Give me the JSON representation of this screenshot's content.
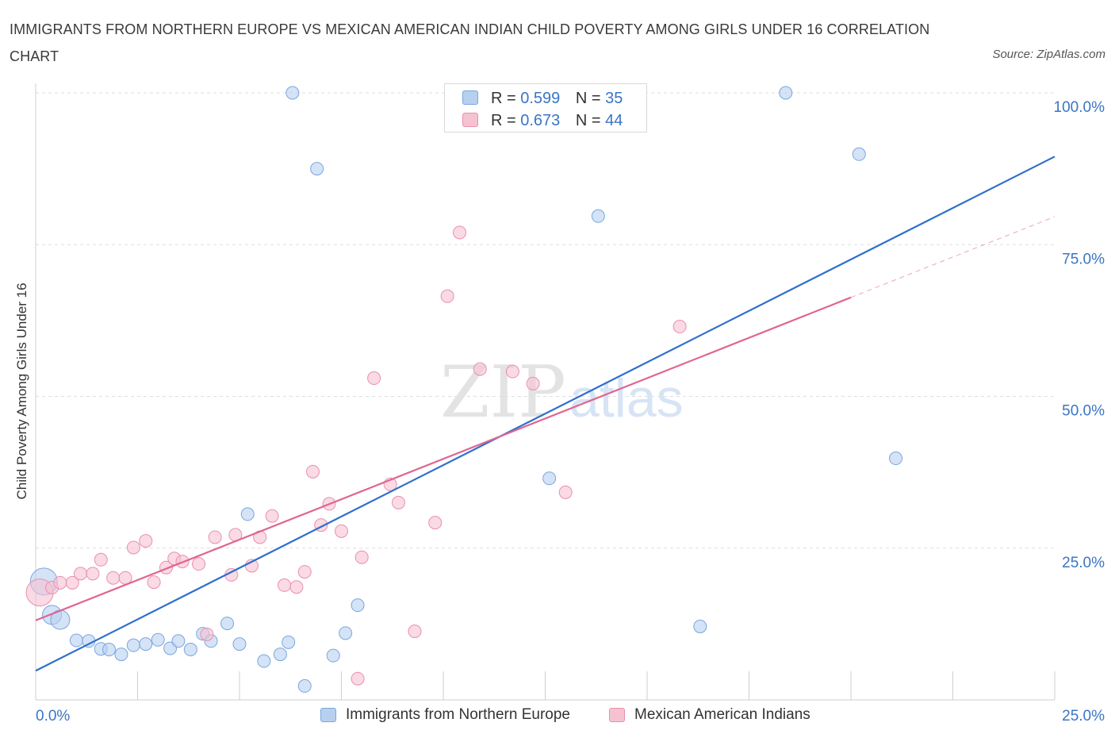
{
  "header": {
    "title": "IMMIGRANTS FROM NORTHERN EUROPE VS MEXICAN AMERICAN INDIAN CHILD POVERTY AMONG GIRLS UNDER 16 CORRELATION CHART",
    "source": "Source: ZipAtlas.com"
  },
  "watermark": {
    "zip": "ZIP",
    "atlas": "atlas"
  },
  "legend": {
    "rows": [
      {
        "r_label": "R =",
        "r_value": "0.599",
        "n_label": "N =",
        "n_value": "35"
      },
      {
        "r_label": "R =",
        "r_value": "0.673",
        "n_label": "N =",
        "n_value": "44"
      }
    ]
  },
  "colors": {
    "blue_fill": "#b8d0f0",
    "blue_stroke": "#7aa6de",
    "blue_line": "#2f6fcc",
    "pink_fill": "#f6c2d2",
    "pink_stroke": "#e98fae",
    "pink_line": "#e06590",
    "tick_text": "#3a75c4",
    "grid": "#dddddd"
  },
  "chart_data": {
    "type": "scatter",
    "title": "IMMIGRANTS FROM NORTHERN EUROPE VS MEXICAN AMERICAN INDIAN CHILD POVERTY AMONG GIRLS UNDER 16 CORRELATION CHART",
    "xlabel": "",
    "ylabel": "Child Poverty Among Girls Under 16",
    "xlim": [
      0,
      25
    ],
    "ylim": [
      0,
      100
    ],
    "x_tick_labels": [
      "0.0%",
      "25.0%"
    ],
    "y_tick_labels": [
      "25.0%",
      "50.0%",
      "75.0%",
      "100.0%"
    ],
    "y_ticks": [
      25,
      50,
      75,
      100
    ],
    "grid": true,
    "legend_position": "top-center",
    "series": [
      {
        "name": "Immigrants from Northern Europe",
        "r": 0.599,
        "n": 35,
        "color": "#7aa6de",
        "trend": {
          "x": [
            0,
            25
          ],
          "y": [
            4.8,
            89.5
          ]
        },
        "points": [
          {
            "x": 0.2,
            "y": 19.5,
            "size": "large"
          },
          {
            "x": 0.4,
            "y": 14.0,
            "size": "medium"
          },
          {
            "x": 0.6,
            "y": 13.2,
            "size": "medium"
          },
          {
            "x": 1.0,
            "y": 9.8
          },
          {
            "x": 1.3,
            "y": 9.7
          },
          {
            "x": 1.6,
            "y": 8.4
          },
          {
            "x": 1.8,
            "y": 8.3
          },
          {
            "x": 2.1,
            "y": 7.5
          },
          {
            "x": 2.4,
            "y": 9.0
          },
          {
            "x": 2.7,
            "y": 9.2
          },
          {
            "x": 3.0,
            "y": 9.9
          },
          {
            "x": 3.3,
            "y": 8.5
          },
          {
            "x": 3.5,
            "y": 9.7
          },
          {
            "x": 3.8,
            "y": 8.3
          },
          {
            "x": 4.1,
            "y": 10.9
          },
          {
            "x": 4.3,
            "y": 9.7
          },
          {
            "x": 4.7,
            "y": 12.6
          },
          {
            "x": 5.0,
            "y": 9.2
          },
          {
            "x": 5.2,
            "y": 30.6
          },
          {
            "x": 5.6,
            "y": 6.4
          },
          {
            "x": 6.0,
            "y": 7.5
          },
          {
            "x": 6.2,
            "y": 9.5
          },
          {
            "x": 6.3,
            "y": 100.0
          },
          {
            "x": 6.6,
            "y": 2.3
          },
          {
            "x": 6.9,
            "y": 87.5
          },
          {
            "x": 7.3,
            "y": 7.3
          },
          {
            "x": 7.6,
            "y": 11.0
          },
          {
            "x": 7.9,
            "y": 15.6
          },
          {
            "x": 10.2,
            "y": 100.0
          },
          {
            "x": 12.6,
            "y": 36.5
          },
          {
            "x": 13.8,
            "y": 79.7
          },
          {
            "x": 16.3,
            "y": 12.1
          },
          {
            "x": 18.4,
            "y": 100.0
          },
          {
            "x": 20.2,
            "y": 89.9
          },
          {
            "x": 21.1,
            "y": 39.8
          }
        ]
      },
      {
        "name": "Mexican American Indians",
        "r": 0.673,
        "n": 44,
        "color": "#e98fae",
        "trend": {
          "x": [
            0,
            20
          ],
          "y": [
            13.1,
            66.3
          ]
        },
        "trend_extension": {
          "x": [
            20,
            25
          ],
          "y": [
            66.3,
            79.6
          ]
        },
        "points": [
          {
            "x": 0.1,
            "y": 17.7,
            "size": "large"
          },
          {
            "x": 0.4,
            "y": 18.5
          },
          {
            "x": 0.6,
            "y": 19.3
          },
          {
            "x": 0.9,
            "y": 19.3
          },
          {
            "x": 1.1,
            "y": 20.8
          },
          {
            "x": 1.4,
            "y": 20.8
          },
          {
            "x": 1.6,
            "y": 23.1
          },
          {
            "x": 1.9,
            "y": 20.1
          },
          {
            "x": 2.2,
            "y": 20.1
          },
          {
            "x": 2.4,
            "y": 25.1
          },
          {
            "x": 2.7,
            "y": 26.2
          },
          {
            "x": 2.9,
            "y": 19.4
          },
          {
            "x": 3.2,
            "y": 21.8
          },
          {
            "x": 3.4,
            "y": 23.3
          },
          {
            "x": 3.6,
            "y": 22.8
          },
          {
            "x": 4.0,
            "y": 22.4
          },
          {
            "x": 4.2,
            "y": 10.8
          },
          {
            "x": 4.4,
            "y": 26.8
          },
          {
            "x": 4.8,
            "y": 20.6
          },
          {
            "x": 4.9,
            "y": 27.2
          },
          {
            "x": 5.3,
            "y": 22.1
          },
          {
            "x": 5.5,
            "y": 26.8
          },
          {
            "x": 5.8,
            "y": 30.3
          },
          {
            "x": 6.1,
            "y": 18.9
          },
          {
            "x": 6.4,
            "y": 18.6
          },
          {
            "x": 6.6,
            "y": 21.1
          },
          {
            "x": 6.8,
            "y": 37.6
          },
          {
            "x": 7.0,
            "y": 28.8
          },
          {
            "x": 7.2,
            "y": 32.3
          },
          {
            "x": 7.5,
            "y": 27.8
          },
          {
            "x": 7.9,
            "y": 3.5
          },
          {
            "x": 8.0,
            "y": 23.5
          },
          {
            "x": 8.3,
            "y": 53.0
          },
          {
            "x": 8.7,
            "y": 35.5
          },
          {
            "x": 8.9,
            "y": 32.5
          },
          {
            "x": 9.3,
            "y": 11.3
          },
          {
            "x": 9.8,
            "y": 29.2
          },
          {
            "x": 10.1,
            "y": 66.5
          },
          {
            "x": 10.4,
            "y": 77.0
          },
          {
            "x": 10.9,
            "y": 54.5
          },
          {
            "x": 11.7,
            "y": 54.1
          },
          {
            "x": 12.2,
            "y": 52.1
          },
          {
            "x": 13.0,
            "y": 34.2
          },
          {
            "x": 15.8,
            "y": 61.5
          }
        ]
      }
    ]
  }
}
